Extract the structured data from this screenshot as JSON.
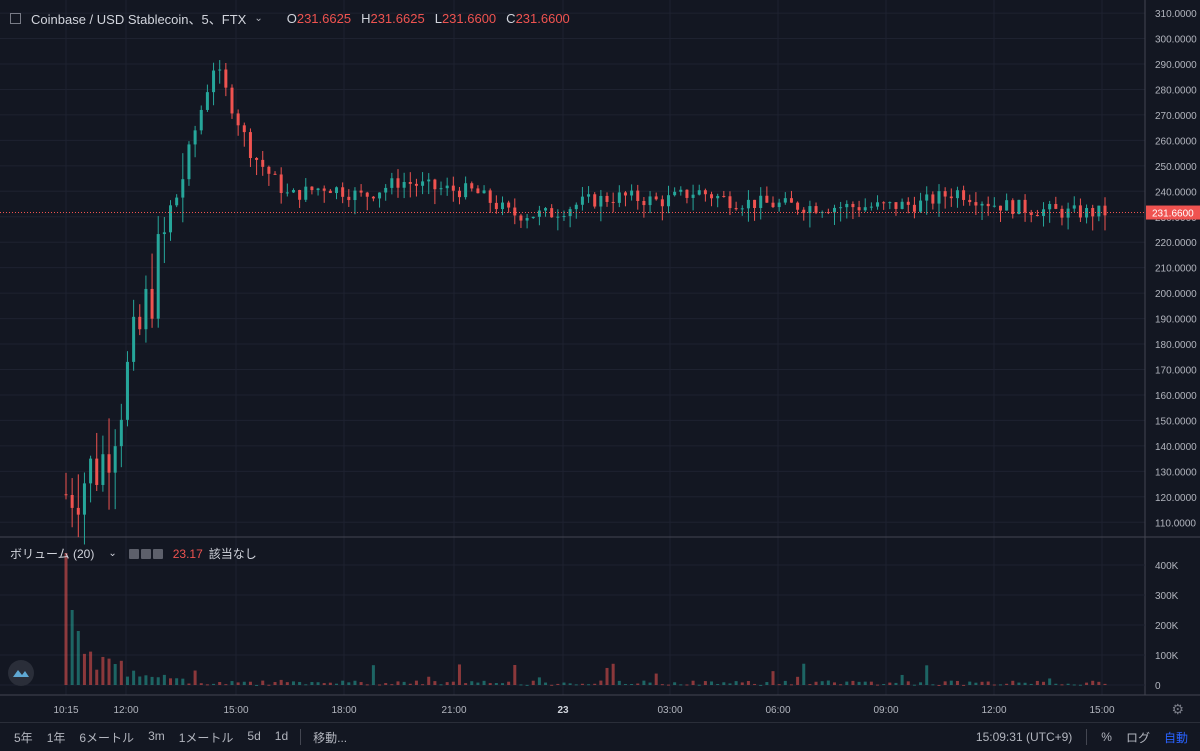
{
  "header": {
    "symbol": "Coinbase / USD Stablecoin、5、FTX",
    "ohlc": [
      {
        "k": "O",
        "v": "231.6625"
      },
      {
        "k": "H",
        "v": "231.6625"
      },
      {
        "k": "L",
        "v": "231.6600"
      },
      {
        "k": "C",
        "v": "231.6600"
      }
    ]
  },
  "volume_header": {
    "label": "ボリューム (20)",
    "value": "23.17",
    "status": "該当なし"
  },
  "bottom_bar": {
    "timeframes": [
      "5年",
      "1年",
      "6メートル",
      "3m",
      "1メートル",
      "5d",
      "1d"
    ],
    "goto": "移動...",
    "clock": "15:09:31 (UTC+9)",
    "percent": "%",
    "log": "ログ",
    "auto": "自動"
  },
  "icons": {
    "header_box": "collapse-square-icon",
    "chevron": "chevron-down-icon",
    "settings": "gear-icon",
    "logo": "tradingview-logo-icon"
  },
  "colors": {
    "background": "#131722",
    "up": "#26a69a",
    "down": "#ef5350",
    "grid": "#1e2230",
    "last_price_line": "#ef5350"
  },
  "chart_data": {
    "type": "candlestick",
    "price_axis": {
      "ylim": [
        105,
        312
      ],
      "ticks": [
        "310.0000",
        "300.0000",
        "290.0000",
        "280.0000",
        "270.0000",
        "260.0000",
        "250.0000",
        "240.0000",
        "230.0000",
        "220.0000",
        "210.0000",
        "200.0000",
        "190.0000",
        "180.0000",
        "170.0000",
        "160.0000",
        "150.0000",
        "140.0000",
        "130.0000",
        "120.0000",
        "110.0000"
      ],
      "last_price": "231.6600"
    },
    "volume_axis": {
      "ylim": [
        0,
        450000
      ],
      "ticks": [
        "400K",
        "300K",
        "200K",
        "100K",
        "0"
      ]
    },
    "time_axis": {
      "ticks": [
        "10:15",
        "12:00",
        "15:00",
        "18:00",
        "21:00",
        "23",
        "03:00",
        "06:00",
        "09:00",
        "12:00",
        "15:00"
      ]
    },
    "price_points": [
      {
        "t": "10:15",
        "p": 121
      },
      {
        "t": "10:20",
        "p": 135
      },
      {
        "t": "10:25",
        "p": 185
      },
      {
        "t": "10:30",
        "p": 240
      },
      {
        "t": "10:35",
        "p": 290
      },
      {
        "t": "10:40",
        "p": 255
      },
      {
        "t": "10:50",
        "p": 238
      },
      {
        "t": "11:00",
        "p": 242
      },
      {
        "t": "12:00",
        "p": 238
      },
      {
        "t": "13:00",
        "p": 244
      },
      {
        "t": "14:00",
        "p": 241
      },
      {
        "t": "15:00",
        "p": 240
      },
      {
        "t": "16:00",
        "p": 231
      },
      {
        "t": "17:00",
        "p": 231
      },
      {
        "t": "18:00",
        "p": 236
      },
      {
        "t": "19:00",
        "p": 238
      },
      {
        "t": "20:00",
        "p": 236
      },
      {
        "t": "21:00",
        "p": 240
      },
      {
        "t": "22:00",
        "p": 236
      },
      {
        "t": "23:00",
        "p": 235
      },
      {
        "t": "00:00",
        "p": 234
      },
      {
        "t": "03:00",
        "p": 234
      },
      {
        "t": "06:00",
        "p": 234
      },
      {
        "t": "08:00",
        "p": 235
      },
      {
        "t": "09:00",
        "p": 240
      },
      {
        "t": "10:00",
        "p": 235
      },
      {
        "t": "12:00",
        "p": 233
      },
      {
        "t": "14:00",
        "p": 231.66
      },
      {
        "t": "15:00",
        "p": 231.66
      }
    ],
    "volume_points": [
      {
        "t": "10:15",
        "v": 440000
      },
      {
        "t": "10:25",
        "v": 200000
      },
      {
        "t": "10:40",
        "v": 120000
      },
      {
        "t": "11:00",
        "v": 60000
      },
      {
        "t": "12:00",
        "v": 25000
      },
      {
        "t": "15:00",
        "v": 90000
      },
      {
        "t": "18:00",
        "v": 10000
      },
      {
        "t": "06:00",
        "v": 5000
      },
      {
        "t": "09:00",
        "v": 20000
      },
      {
        "t": "15:00",
        "v": 8000
      }
    ]
  }
}
